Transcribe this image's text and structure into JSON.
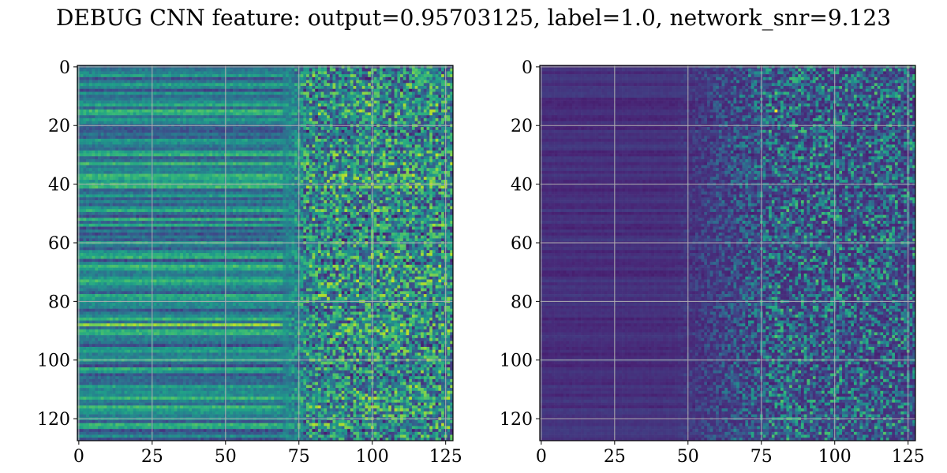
{
  "title": "DEBUG CNN feature: output=0.95703125, label=1.0, network_snr=9.123",
  "chart_data": [
    {
      "type": "heatmap",
      "colormap": "viridis",
      "rows": 128,
      "cols": 128,
      "xticks": [
        0,
        25,
        50,
        75,
        100,
        125
      ],
      "yticks": [
        0,
        20,
        40,
        60,
        80,
        100,
        120
      ],
      "xlim": [
        -0.5,
        127.5
      ],
      "ylim": [
        127.5,
        -0.5
      ],
      "grid": true,
      "grid_color": "#b0b0b0",
      "pattern": "smooth horizontal bands for columns 0-70 (mid-level teal/green), noisy bright yellow-green speckle for columns 75-127",
      "base_level": 0.45,
      "noise_level": 0.35
    },
    {
      "type": "heatmap",
      "colormap": "viridis",
      "rows": 128,
      "cols": 128,
      "xticks": [
        0,
        25,
        50,
        75,
        100,
        125
      ],
      "yticks": [
        0,
        20,
        40,
        60,
        80,
        100,
        120
      ],
      "xlim": [
        -0.5,
        127.5
      ],
      "ylim": [
        127.5,
        -0.5
      ],
      "grid": true,
      "grid_color": "#b0b0b0",
      "pattern": "dark purple horizontal bands for columns 0-50, sparse teal/green speckle increasing toward columns 75-127",
      "base_level": 0.08,
      "noise_level": 0.3
    }
  ]
}
